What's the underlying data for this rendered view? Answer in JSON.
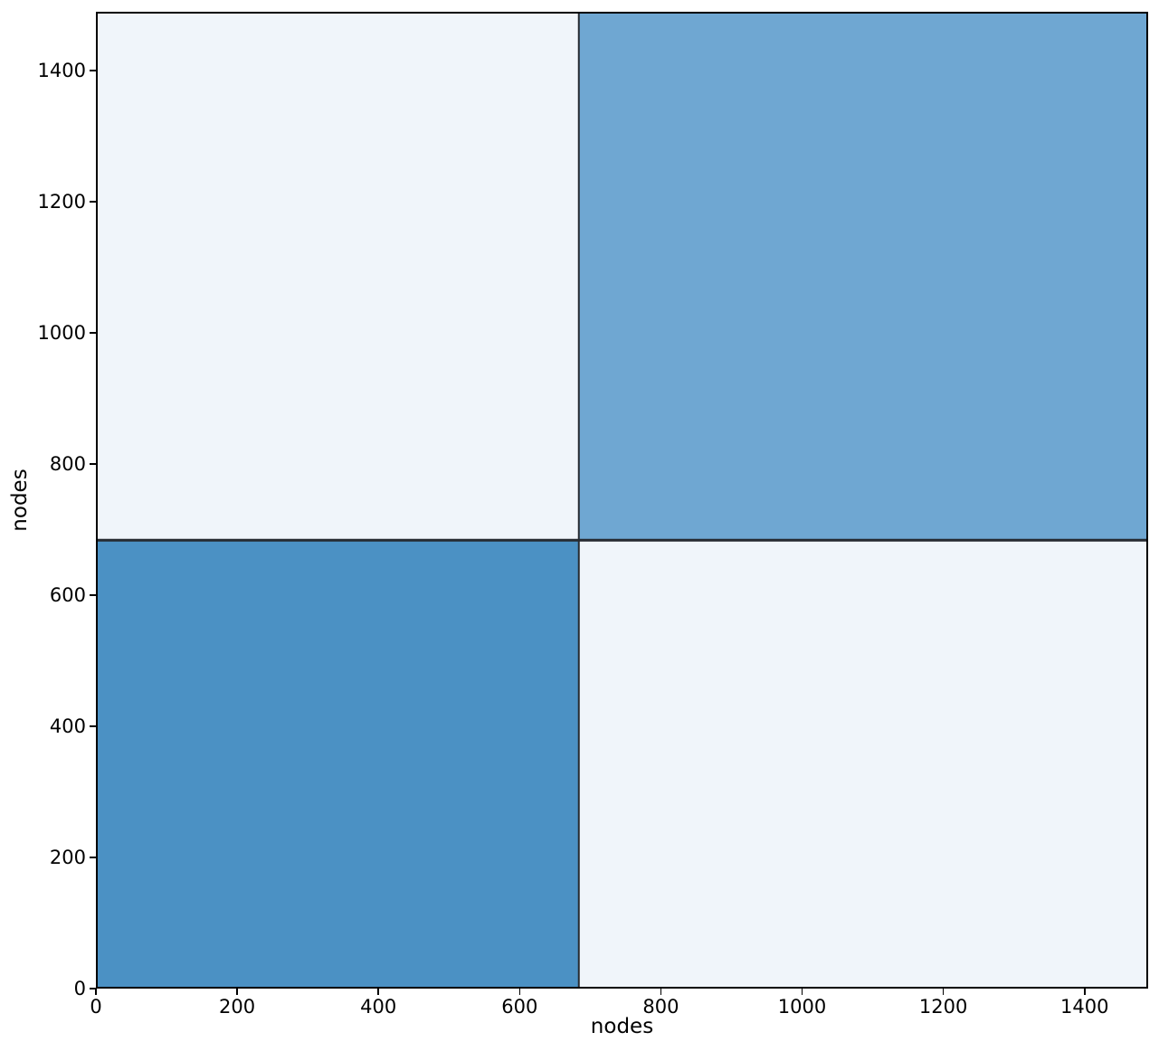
{
  "chart_data": {
    "type": "heatmap",
    "subtype": "block-model-adjacency-matrix",
    "xlabel": "nodes",
    "ylabel": "nodes",
    "xlim": [
      0,
      1490
    ],
    "ylim": [
      0,
      1490
    ],
    "xticks": [
      0,
      200,
      400,
      600,
      800,
      1000,
      1200,
      1400
    ],
    "yticks": [
      0,
      200,
      400,
      600,
      800,
      1000,
      1200,
      1400
    ],
    "grid": false,
    "legend": false,
    "n_nodes": 1490,
    "block_boundary": 684,
    "block_sizes": [
      684,
      806
    ],
    "blocks": [
      {
        "id": "within-community-1-block",
        "x0": 0,
        "x1": 684,
        "y0": 0,
        "y1": 684,
        "color": "#4b91c4",
        "density": "high"
      },
      {
        "id": "between-communities-upper-left-block",
        "x0": 0,
        "x1": 684,
        "y0": 684,
        "y1": 1490,
        "color": "#f0f5fa",
        "density": "low"
      },
      {
        "id": "within-community-2-block",
        "x0": 684,
        "x1": 1490,
        "y0": 684,
        "y1": 1490,
        "color": "#6fa7d2",
        "density": "medium"
      },
      {
        "id": "between-communities-lower-right-block",
        "x0": 684,
        "x1": 1490,
        "y0": 0,
        "y1": 684,
        "color": "#f0f5fa",
        "density": "low"
      }
    ],
    "separator_color": "#262a30",
    "frame_color": "#000000",
    "tick_color": "#000000",
    "text_color": "#000000",
    "background_color": "#ffffff"
  }
}
